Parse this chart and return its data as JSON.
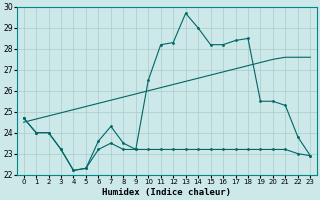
{
  "xlabel": "Humidex (Indice chaleur)",
  "background_color": "#cce8e8",
  "grid_color": "#aacccc",
  "line_color": "#006666",
  "xlim": [
    -0.5,
    23.5
  ],
  "ylim": [
    22,
    30
  ],
  "yticks": [
    22,
    23,
    24,
    25,
    26,
    27,
    28,
    29,
    30
  ],
  "xticks": [
    0,
    1,
    2,
    3,
    4,
    5,
    6,
    7,
    8,
    9,
    10,
    11,
    12,
    13,
    14,
    15,
    16,
    17,
    18,
    19,
    20,
    21,
    22,
    23
  ],
  "hours": [
    0,
    1,
    2,
    3,
    4,
    5,
    6,
    7,
    8,
    9,
    10,
    11,
    12,
    13,
    14,
    15,
    16,
    17,
    18,
    19,
    20,
    21,
    22,
    23
  ],
  "top_line": [
    24.7,
    24.0,
    24.0,
    23.2,
    22.2,
    22.3,
    23.6,
    24.3,
    23.5,
    23.2,
    26.5,
    28.2,
    28.3,
    29.7,
    29.0,
    28.2,
    28.2,
    28.4,
    28.5,
    25.5,
    25.5,
    25.3,
    23.8,
    22.9
  ],
  "mid_line": [
    24.5,
    24.65,
    24.8,
    24.95,
    25.1,
    25.25,
    25.4,
    25.55,
    25.7,
    25.85,
    26.0,
    26.15,
    26.3,
    26.45,
    26.6,
    26.75,
    26.9,
    27.05,
    27.2,
    27.35,
    27.5,
    27.6,
    27.6,
    27.6
  ],
  "bot_line": [
    24.7,
    24.0,
    24.0,
    23.2,
    22.2,
    22.3,
    23.2,
    23.5,
    23.2,
    23.2,
    23.2,
    23.2,
    23.2,
    23.2,
    23.2,
    23.2,
    23.2,
    23.2,
    23.2,
    23.2,
    23.2,
    23.2,
    23.0,
    22.9
  ]
}
